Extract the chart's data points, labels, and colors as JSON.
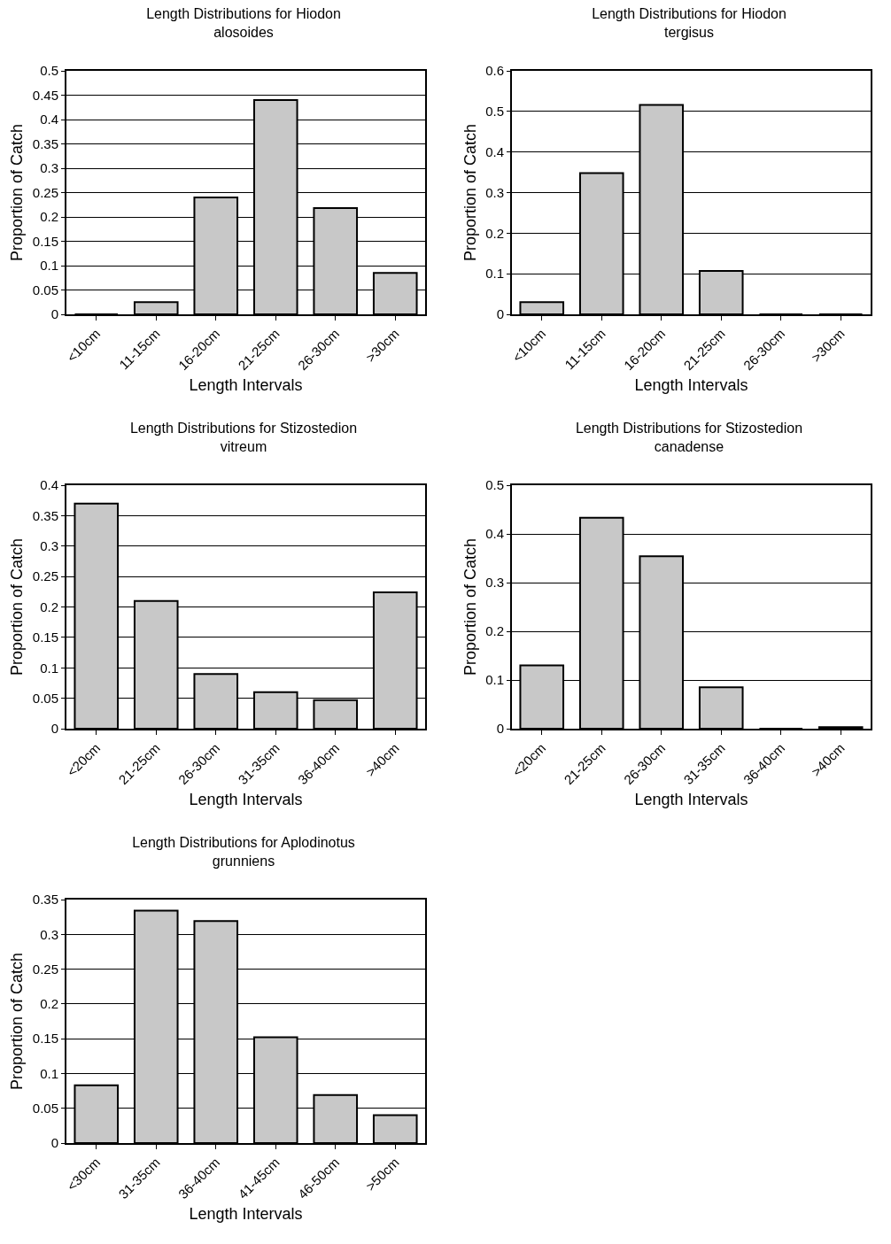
{
  "chart_data": [
    {
      "type": "bar",
      "title": "Length Distributions for Hiodon alosoides",
      "xlabel": "Length Intervals",
      "ylabel": "Proportion of Catch",
      "categories": [
        "<10cm",
        "11-15cm",
        "16-20cm",
        "21-25cm",
        "26-30cm",
        ">30cm"
      ],
      "values": [
        0,
        0.025,
        0.24,
        0.44,
        0.218,
        0.085
      ],
      "color": "#c8c8c8",
      "ylim": [
        0,
        0.5
      ],
      "yticks": [
        0,
        0.05,
        0.1,
        0.15,
        0.2,
        0.25,
        0.3,
        0.35,
        0.4,
        0.45,
        0.5
      ],
      "grid": "y"
    },
    {
      "type": "bar",
      "title": "Length Distributions for Hiodon tergisus",
      "xlabel": "Length Intervals",
      "ylabel": "Proportion of Catch",
      "categories": [
        "<10cm",
        "11-15cm",
        "16-20cm",
        "21-25cm",
        "26-30cm",
        ">30cm"
      ],
      "values": [
        0.03,
        0.348,
        0.516,
        0.107,
        0,
        0
      ],
      "color": "#c8c8c8",
      "ylim": [
        0,
        0.6
      ],
      "yticks": [
        0,
        0.1,
        0.2,
        0.3,
        0.4,
        0.5,
        0.6
      ],
      "grid": "y"
    },
    {
      "type": "bar",
      "title": "Length Distributions for Stizostedion vitreum",
      "xlabel": "Length Intervals",
      "ylabel": "Proportion of Catch",
      "categories": [
        "<20cm",
        "21-25cm",
        "26-30cm",
        "31-35cm",
        "36-40cm",
        ">40cm"
      ],
      "values": [
        0.37,
        0.21,
        0.09,
        0.06,
        0.047,
        0.224
      ],
      "color": "#c8c8c8",
      "ylim": [
        0,
        0.4
      ],
      "yticks": [
        0,
        0.05,
        0.1,
        0.15,
        0.2,
        0.25,
        0.3,
        0.35,
        0.4
      ],
      "grid": "y"
    },
    {
      "type": "bar",
      "title": "Length Distributions for Stizostedion canadense",
      "xlabel": "Length Intervals",
      "ylabel": "Proportion of Catch",
      "categories": [
        "<20cm",
        "21-25cm",
        "26-30cm",
        "31-35cm",
        "36-40cm",
        ">40cm"
      ],
      "values": [
        0.13,
        0.433,
        0.354,
        0.085,
        0,
        0.003
      ],
      "color": "#c8c8c8",
      "ylim": [
        0,
        0.5
      ],
      "yticks": [
        0,
        0.1,
        0.2,
        0.3,
        0.4,
        0.5
      ],
      "grid": "y"
    },
    {
      "type": "bar",
      "title": "Length Distributions for Aplodinotus grunniens",
      "xlabel": "Length Intervals",
      "ylabel": "Proportion of Catch",
      "categories": [
        "<30cm",
        "31-35cm",
        "36-40cm",
        "41-45cm",
        "46-50cm",
        ">50cm"
      ],
      "values": [
        0.083,
        0.334,
        0.319,
        0.152,
        0.069,
        0.04
      ],
      "color": "#c8c8c8",
      "ylim": [
        0,
        0.35
      ],
      "yticks": [
        0,
        0.05,
        0.1,
        0.15,
        0.2,
        0.25,
        0.3,
        0.35
      ],
      "grid": "y"
    }
  ]
}
